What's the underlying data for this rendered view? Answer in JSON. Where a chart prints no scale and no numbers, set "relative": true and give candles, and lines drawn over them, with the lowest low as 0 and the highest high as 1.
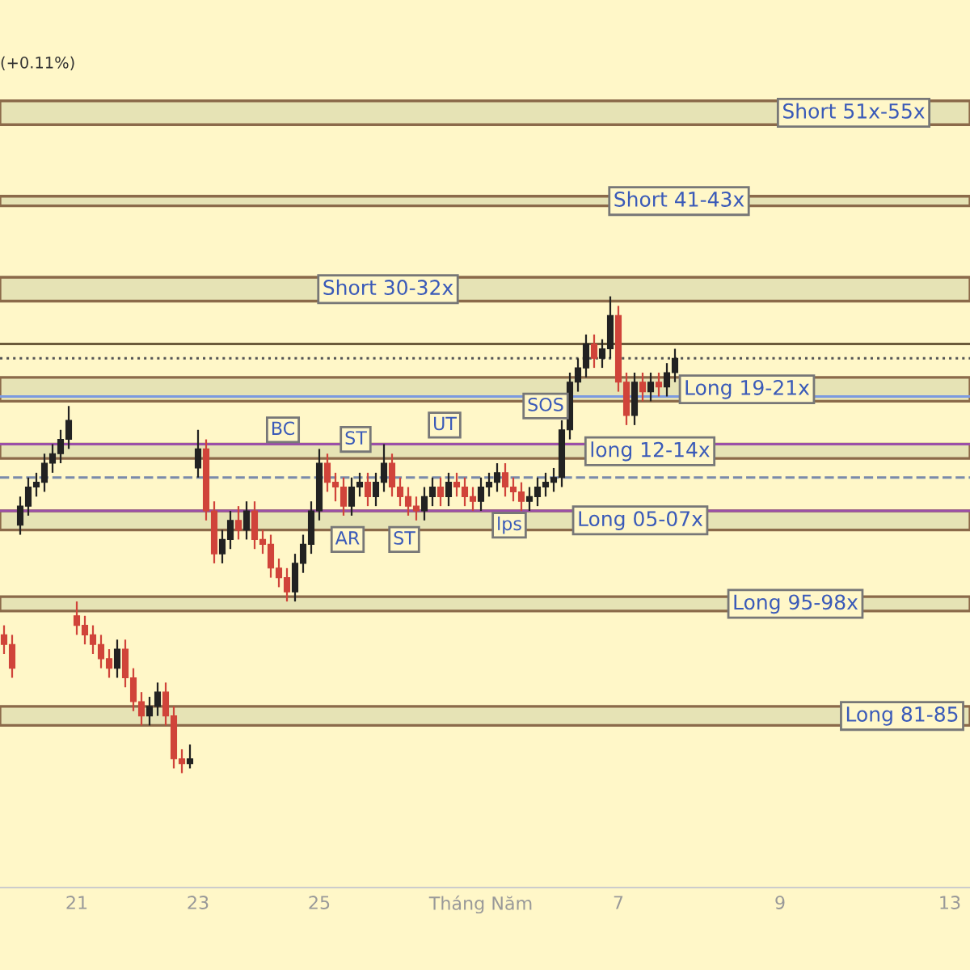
{
  "chart_data": {
    "type": "candlestick",
    "relative": true,
    "categories": [
      null,
      null,
      null,
      null,
      null,
      null,
      null,
      null,
      null,
      "21",
      null,
      null,
      null,
      null,
      null,
      null,
      null,
      null,
      null,
      null,
      null,
      null,
      null,
      null,
      "23",
      null,
      null,
      null,
      null,
      null,
      null,
      null,
      null,
      null,
      null,
      null,
      null,
      null,
      null,
      "25",
      null,
      null,
      null,
      null,
      null,
      null,
      null,
      null,
      null,
      null,
      null,
      null,
      null,
      null,
      null,
      null,
      null,
      null,
      null,
      "Tháng Năm",
      null,
      null,
      null,
      null,
      null,
      null,
      null,
      null,
      null,
      null,
      null,
      null,
      null,
      null,
      null,
      null,
      "7",
      null,
      null,
      null,
      null,
      null,
      null,
      null,
      null,
      null,
      null,
      null,
      null,
      null,
      null,
      null,
      null,
      null,
      null,
      null,
      "9",
      null,
      null,
      null,
      null,
      null,
      null,
      null,
      null,
      null,
      null,
      null,
      null,
      null,
      null,
      null,
      null,
      null,
      null,
      null,
      null,
      "13",
      null,
      null
    ],
    "ohlc": [
      [
        0.29,
        0.31,
        0.25,
        0.27
      ],
      [
        0.27,
        0.29,
        0.2,
        0.22
      ],
      [
        0.52,
        0.58,
        0.5,
        0.56
      ],
      [
        0.56,
        0.62,
        0.54,
        0.6
      ],
      [
        0.6,
        0.63,
        0.58,
        0.61
      ],
      [
        0.61,
        0.67,
        0.59,
        0.65
      ],
      [
        0.65,
        0.69,
        0.63,
        0.67
      ],
      [
        0.67,
        0.72,
        0.65,
        0.7
      ],
      [
        0.7,
        0.77,
        0.68,
        0.74
      ],
      [
        0.33,
        0.36,
        0.29,
        0.31
      ],
      [
        0.31,
        0.33,
        0.27,
        0.29
      ],
      [
        0.29,
        0.31,
        0.25,
        0.27
      ],
      [
        0.27,
        0.29,
        0.22,
        0.24
      ],
      [
        0.24,
        0.26,
        0.2,
        0.22
      ],
      [
        0.22,
        0.28,
        0.2,
        0.26
      ],
      [
        0.26,
        0.28,
        0.18,
        0.2
      ],
      [
        0.2,
        0.22,
        0.13,
        0.15
      ],
      [
        0.15,
        0.17,
        0.1,
        0.12
      ],
      [
        0.12,
        0.16,
        0.1,
        0.14
      ],
      [
        0.14,
        0.19,
        0.12,
        0.17
      ],
      [
        0.17,
        0.19,
        0.1,
        0.12
      ],
      [
        0.12,
        0.14,
        0.01,
        0.03
      ],
      [
        0.03,
        0.05,
        0.0,
        0.02
      ],
      [
        0.02,
        0.06,
        0.01,
        0.03
      ],
      [
        0.64,
        0.72,
        0.62,
        0.68
      ],
      [
        0.68,
        0.7,
        0.53,
        0.55
      ],
      [
        0.55,
        0.57,
        0.44,
        0.46
      ],
      [
        0.46,
        0.51,
        0.44,
        0.49
      ],
      [
        0.49,
        0.55,
        0.47,
        0.53
      ],
      [
        0.53,
        0.56,
        0.49,
        0.51
      ],
      [
        0.51,
        0.57,
        0.49,
        0.55
      ],
      [
        0.55,
        0.57,
        0.47,
        0.49
      ],
      [
        0.49,
        0.51,
        0.46,
        0.48
      ],
      [
        0.48,
        0.5,
        0.41,
        0.43
      ],
      [
        0.43,
        0.45,
        0.39,
        0.41
      ],
      [
        0.41,
        0.43,
        0.36,
        0.38
      ],
      [
        0.38,
        0.46,
        0.36,
        0.44
      ],
      [
        0.44,
        0.5,
        0.42,
        0.48
      ],
      [
        0.48,
        0.57,
        0.46,
        0.55
      ],
      [
        0.55,
        0.68,
        0.53,
        0.65
      ],
      [
        0.65,
        0.67,
        0.59,
        0.61
      ],
      [
        0.61,
        0.63,
        0.57,
        0.6
      ],
      [
        0.6,
        0.62,
        0.54,
        0.56
      ],
      [
        0.56,
        0.62,
        0.54,
        0.6
      ],
      [
        0.6,
        0.63,
        0.58,
        0.61
      ],
      [
        0.61,
        0.63,
        0.56,
        0.58
      ],
      [
        0.58,
        0.63,
        0.56,
        0.61
      ],
      [
        0.61,
        0.69,
        0.59,
        0.65
      ],
      [
        0.65,
        0.67,
        0.58,
        0.6
      ],
      [
        0.6,
        0.62,
        0.56,
        0.58
      ],
      [
        0.58,
        0.6,
        0.54,
        0.56
      ],
      [
        0.56,
        0.58,
        0.53,
        0.55
      ],
      [
        0.55,
        0.6,
        0.53,
        0.58
      ],
      [
        0.58,
        0.62,
        0.56,
        0.6
      ],
      [
        0.6,
        0.62,
        0.56,
        0.58
      ],
      [
        0.58,
        0.63,
        0.56,
        0.61
      ],
      [
        0.61,
        0.63,
        0.58,
        0.6
      ],
      [
        0.6,
        0.62,
        0.56,
        0.58
      ],
      [
        0.58,
        0.6,
        0.55,
        0.57
      ],
      [
        0.57,
        0.62,
        0.55,
        0.6
      ],
      [
        0.6,
        0.63,
        0.58,
        0.61
      ],
      [
        0.61,
        0.65,
        0.59,
        0.63
      ],
      [
        0.63,
        0.65,
        0.58,
        0.6
      ],
      [
        0.6,
        0.62,
        0.57,
        0.59
      ],
      [
        0.59,
        0.61,
        0.55,
        0.57
      ],
      [
        0.57,
        0.6,
        0.55,
        0.58
      ],
      [
        0.58,
        0.62,
        0.56,
        0.6
      ],
      [
        0.6,
        0.63,
        0.58,
        0.61
      ],
      [
        0.61,
        0.64,
        0.59,
        0.62
      ],
      [
        0.62,
        0.74,
        0.6,
        0.72
      ],
      [
        0.72,
        0.84,
        0.7,
        0.82
      ],
      [
        0.82,
        0.87,
        0.8,
        0.85
      ],
      [
        0.85,
        0.92,
        0.83,
        0.9
      ],
      [
        0.9,
        0.92,
        0.85,
        0.87
      ],
      [
        0.87,
        0.91,
        0.85,
        0.89
      ],
      [
        0.89,
        1.0,
        0.87,
        0.96
      ],
      [
        0.96,
        0.98,
        0.8,
        0.82
      ],
      [
        0.82,
        0.84,
        0.73,
        0.75
      ],
      [
        0.75,
        0.84,
        0.73,
        0.82
      ],
      [
        0.82,
        0.84,
        0.78,
        0.8
      ],
      [
        0.8,
        0.84,
        0.78,
        0.82
      ],
      [
        0.82,
        0.84,
        0.79,
        0.81
      ],
      [
        0.81,
        0.86,
        0.79,
        0.84
      ],
      [
        0.84,
        0.89,
        0.82,
        0.87
      ],
      null,
      null,
      null,
      null,
      null,
      null,
      null,
      null,
      null,
      null,
      null,
      null,
      null,
      null,
      null,
      null,
      null,
      null,
      null,
      null,
      null,
      null,
      null,
      null,
      null,
      null,
      null,
      null,
      null,
      null,
      null,
      null,
      null,
      null,
      null,
      null
    ],
    "bands": [
      {
        "axis": "y",
        "from": 1.36,
        "to": 1.41,
        "label": "Short 51x-55x",
        "color": "#e6e3b5"
      },
      {
        "axis": "y",
        "from": 1.19,
        "to": 1.21,
        "label": "Short 41-43x",
        "color": "#e6e3b5"
      },
      {
        "axis": "y",
        "from": 0.99,
        "to": 1.04,
        "label": "Short 30-32x",
        "color": "#e6e3b5"
      },
      {
        "axis": "y",
        "from": 0.78,
        "to": 0.83,
        "label": "Long 19-21x",
        "color": "#e6e3b5"
      },
      {
        "axis": "y",
        "from": 0.66,
        "to": 0.69,
        "label": "long 12-14x",
        "color": "#e6e3b5"
      },
      {
        "axis": "y",
        "from": 0.51,
        "to": 0.55,
        "label": "Long 05-07x",
        "color": "#e6e3b5"
      },
      {
        "axis": "y",
        "from": 0.34,
        "to": 0.37,
        "label": "Long 95-98x",
        "color": "#e6e3b5"
      },
      {
        "axis": "y",
        "from": 0.1,
        "to": 0.14,
        "label": "Long 81-85",
        "color": "#e6e3b5"
      }
    ],
    "ref_lines": [
      {
        "axis": "y",
        "value": 0.9,
        "color": "#6b5a3a",
        "line_style": "solid"
      },
      {
        "axis": "y",
        "value": 0.87,
        "color": "#555555",
        "line_style": "dotted"
      },
      {
        "axis": "y",
        "value": 0.79,
        "color": "#7b9ae0",
        "line_style": "solid"
      },
      {
        "axis": "y",
        "value": 0.69,
        "color": "#9b4fa8",
        "line_style": "solid"
      },
      {
        "axis": "y",
        "value": 0.62,
        "color": "#7a8aaa",
        "line_style": "dashed"
      },
      {
        "axis": "y",
        "value": 0.55,
        "color": "#9b4fa8",
        "line_style": "solid"
      }
    ],
    "annotations": [
      "(+0.11%)",
      {
        "text": "BC",
        "y": 0.72
      },
      {
        "text": "ST",
        "y": 0.7
      },
      {
        "text": "UT",
        "y": 0.73
      },
      {
        "text": "SOS",
        "y": 0.77
      },
      {
        "text": "AR",
        "y": 0.49
      },
      {
        "text": "ST",
        "y": 0.49
      },
      {
        "text": "lps",
        "y": 0.52
      }
    ],
    "grid": false,
    "legend": false
  }
}
